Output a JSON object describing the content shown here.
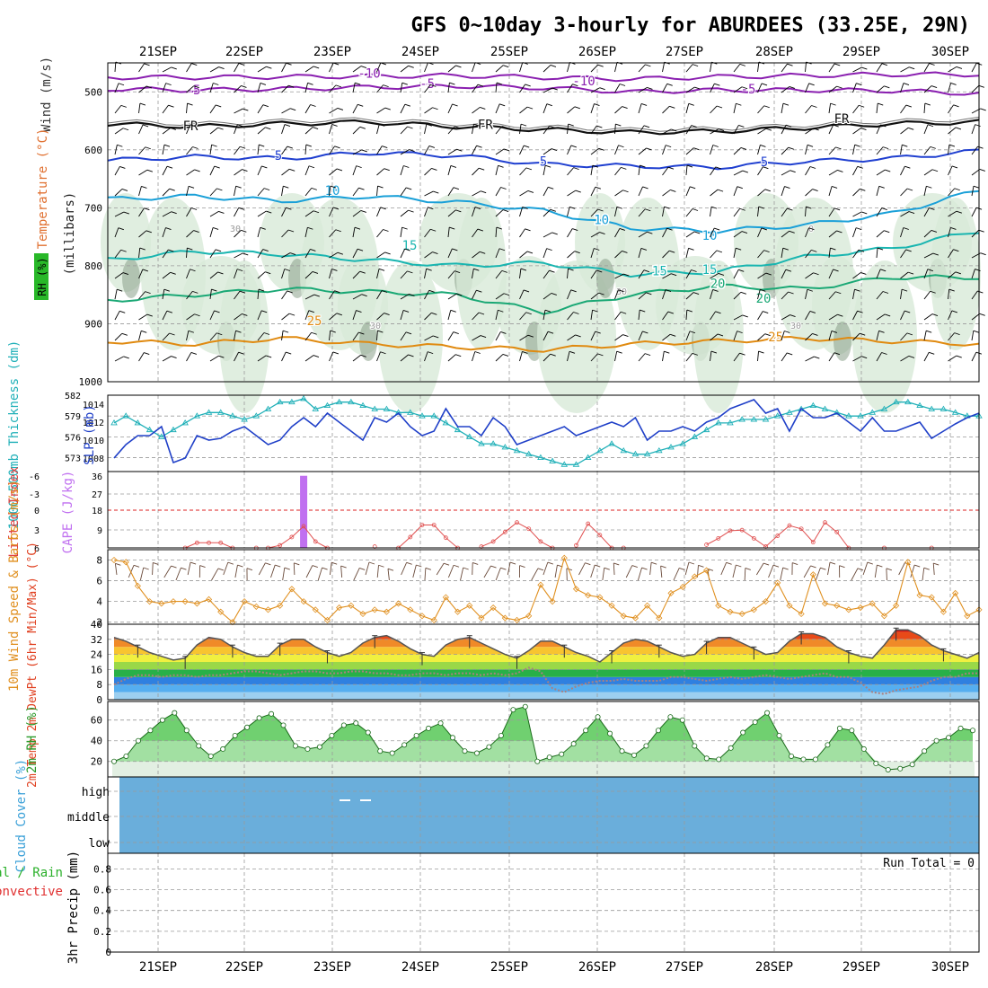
{
  "title": "GFS 0~10day 3-hourly for ABURDEES (33.25E, 29N)",
  "colors": {
    "grid": "#9a9a9a",
    "ref_red": "#dd2222",
    "purple": "#8a1fb0",
    "black": "#111111",
    "blue": "#1f3fd0",
    "cyan": "#1aa0d8",
    "teal": "#19b5b0",
    "green": "#1aa875",
    "orange": "#e08a10",
    "orange_dark": "#d05a10",
    "rh_fill": "#d8ead8",
    "rh_dark": "#8aa08a",
    "slp_line": "#2040c8",
    "thk_line": "#20b0b8",
    "cape_bar": "#c070f0",
    "li_line": "#e05050",
    "wind_line": "#e09020",
    "barb": "#6a4a3a",
    "cloud": "#6aaedb",
    "rh2m_fill": "#40c040"
  },
  "chart_data": [
    {
      "type": "line",
      "panel": "upper-air",
      "days": [
        "21SEP",
        "22SEP",
        "23SEP",
        "24SEP",
        "25SEP",
        "26SEP",
        "27SEP",
        "28SEP",
        "29SEP",
        "30SEP"
      ],
      "ylabel_parts": [
        "RH (%)",
        "Temperature (°C)",
        "Wind (m/s)",
        "(millibars)"
      ],
      "yticks": [
        500,
        600,
        700,
        800,
        900,
        1000
      ],
      "ylim": [
        450,
        1000
      ],
      "series": [
        {
          "name": "-10",
          "label": "-10",
          "color": "purple",
          "p": [
            475,
            475,
            474,
            473,
            472,
            475,
            478,
            474,
            472,
            470,
            470
          ]
        },
        {
          "name": "-5",
          "label": "-5",
          "color": "purple",
          "p": [
            495,
            497,
            495,
            492,
            490,
            493,
            500,
            497,
            497,
            498,
            503
          ]
        },
        {
          "name": "FR",
          "label": "FR",
          "color": "black",
          "p": [
            555,
            560,
            555,
            552,
            560,
            565,
            570,
            568,
            562,
            555,
            552
          ]
        },
        {
          "name": "5",
          "label": "5",
          "color": "blue",
          "p": [
            618,
            612,
            615,
            605,
            610,
            625,
            628,
            630,
            620,
            615,
            602
          ]
        },
        {
          "name": "10",
          "label": "10",
          "color": "cyan",
          "p": [
            685,
            680,
            688,
            680,
            690,
            705,
            735,
            740,
            730,
            710,
            670
          ]
        },
        {
          "name": "15",
          "label": "15",
          "color": "teal",
          "p": [
            790,
            775,
            780,
            790,
            800,
            795,
            815,
            810,
            785,
            770,
            740
          ]
        },
        {
          "name": "20",
          "label": "20",
          "color": "green",
          "p": [
            860,
            850,
            840,
            845,
            850,
            880,
            850,
            835,
            840,
            820,
            820
          ]
        },
        {
          "name": "25",
          "label": "25",
          "color": "orange",
          "p": [
            930,
            935,
            925,
            935,
            940,
            945,
            935,
            930,
            925,
            930,
            935
          ]
        }
      ],
      "contour_labels": [
        "-10",
        "-5",
        "-5",
        "FR",
        "FR",
        "5",
        "5",
        "10",
        "10",
        "15",
        "15",
        "20",
        "25",
        "30",
        "30",
        "30",
        "30",
        "0"
      ]
    },
    {
      "type": "line",
      "panel": "slp-thickness",
      "ylabel_left": "1000-500mb Thickness (dm)",
      "ylabel_right": "SLP (mb)",
      "thickness_ticks": [
        582,
        579,
        576,
        573
      ],
      "slp_ticks": [
        1014,
        1012,
        1010,
        1008
      ],
      "thickness_lim": [
        571,
        582
      ],
      "slp_lim": [
        1006.5,
        1015
      ],
      "series": [
        {
          "name": "SLP",
          "values": [
            1008,
            1009.5,
            1010.5,
            1010.5,
            1011.5,
            1007.5,
            1008,
            1010.5,
            1010,
            1010.2,
            1011,
            1011.5,
            1010.5,
            1009.5,
            1010,
            1011.5,
            1012.5,
            1011.5,
            1013,
            1012,
            1011,
            1010,
            1012.5,
            1012,
            1013,
            1011.5,
            1010.5,
            1011,
            1013.5,
            1011.5,
            1011.5,
            1010.5,
            1012.5,
            1011.5,
            1009.5,
            1010,
            1010.5,
            1011,
            1011.5,
            1010.5,
            1011,
            1011.5,
            1012,
            1011.5,
            1012.5,
            1010,
            1011,
            1011,
            1011.5,
            1011,
            1012,
            1012.5,
            1013.5,
            1014,
            1014.5,
            1013,
            1013.5,
            1011,
            1013.5,
            1012.5,
            1012.5,
            1013,
            1012,
            1011,
            1012.5,
            1011,
            1011,
            1011.5,
            1012,
            1010.2,
            1011,
            1011.8,
            1012.5,
            1013
          ]
        },
        {
          "name": "Thickness",
          "values": [
            578,
            579,
            578,
            577,
            576,
            577,
            578,
            579,
            579.5,
            579.5,
            579,
            578.5,
            579,
            580,
            581,
            581,
            581.5,
            580,
            580.5,
            581,
            581,
            580.5,
            580,
            580,
            579.5,
            579.5,
            579,
            579,
            578,
            577,
            576,
            575,
            575,
            574.5,
            574,
            573.5,
            573,
            572.5,
            572,
            572,
            573,
            574,
            575,
            574,
            573.5,
            573.5,
            574,
            574.5,
            575,
            576,
            577,
            578,
            578,
            578.5,
            578.5,
            578.5,
            579,
            579.5,
            580,
            580.5,
            580,
            579.5,
            579,
            579,
            579.5,
            580,
            581,
            581,
            580.5,
            580,
            580,
            579.5,
            579,
            579
          ]
        }
      ]
    },
    {
      "type": "bar",
      "panel": "cape-li",
      "ylabel_left": "Lifted Index",
      "ylabel_right": "CAPE (J/kg)",
      "li_ticks": [
        "-6",
        "-3",
        "0",
        "3",
        "6"
      ],
      "cape_ticks": [
        "36",
        "27",
        "18",
        "9",
        ""
      ],
      "cape_lim": [
        0,
        36
      ],
      "li_lim": [
        6,
        -6
      ],
      "cape_bars": [
        {
          "index": 16,
          "value": 34
        }
      ],
      "li_series": [
        {
          "name": "LI",
          "values": [
            null,
            null,
            null,
            null,
            null,
            null,
            6,
            5.2,
            5.2,
            5.2,
            6,
            null,
            6,
            6,
            5.6,
            4.3,
            2.6,
            5,
            6,
            null,
            null,
            null,
            5.8,
            null,
            6,
            4.3,
            2.4,
            2.4,
            4.4,
            6,
            null,
            5.8,
            5,
            3.5,
            2,
            3,
            5,
            6,
            null,
            5.6,
            2.2,
            4,
            6,
            6,
            null,
            null,
            null,
            null,
            null,
            null,
            5.5,
            4.5,
            3.3,
            3.2,
            4.5,
            5.8,
            4.1,
            2.5,
            3,
            5.1,
            2,
            3.5,
            6,
            null,
            null,
            6,
            null,
            null,
            null,
            6,
            null,
            null,
            null,
            null,
            null,
            null,
            6,
            6,
            6,
            6,
            6,
            5.9,
            5.8,
            5.1
          ]
        }
      ]
    },
    {
      "type": "line",
      "panel": "wind10m",
      "ylabel": "10m Wind Speed & Barbs (m/s)",
      "yticks": [
        "8",
        "6",
        "4",
        "2"
      ],
      "ylim": [
        1.8,
        9
      ],
      "series": [
        {
          "name": "Speed",
          "values": [
            8,
            7.8,
            5.5,
            4,
            3.8,
            4,
            4,
            3.8,
            4.2,
            3,
            2,
            4,
            3.5,
            3.2,
            3.6,
            5.2,
            4,
            3.2,
            2.2,
            3.4,
            3.6,
            2.8,
            3.2,
            3,
            3.8,
            3.2,
            2.6,
            2.2,
            4.4,
            3,
            3.6,
            2.4,
            3.4,
            2.4,
            2.2,
            2.6,
            5.6,
            4,
            8.2,
            5.2,
            4.6,
            4.4,
            3.6,
            2.6,
            2.4,
            3.6,
            2.4,
            4.8,
            5.4,
            6.4,
            7,
            3.6,
            3,
            2.8,
            3.2,
            4,
            5.8,
            3.6,
            2.8,
            6.6,
            3.8,
            3.6,
            3.2,
            3.4,
            3.8,
            2.6,
            3.6,
            7.8,
            4.6,
            4.4,
            3,
            4.8,
            2.6,
            3.2,
            4.2,
            5,
            6.8,
            4.8,
            3.8,
            5,
            3.4,
            4.6,
            5,
            7,
            6.4,
            5,
            3.2,
            2.6,
            3.6,
            4.4,
            5.2,
            6,
            5.2,
            4.2,
            4
          ]
        }
      ]
    },
    {
      "type": "area",
      "panel": "temp2m",
      "ylabel": "2m Temp 2m DewPt (6hr Min/Max) (°C)",
      "yticks": [
        "40",
        "32",
        "24",
        "16",
        "8",
        "0"
      ],
      "ylim": [
        0,
        40
      ],
      "series": [
        {
          "name": "Temp",
          "values": [
            33,
            31,
            28,
            25,
            23,
            21,
            22,
            29,
            33,
            32,
            28,
            25,
            23,
            23,
            29,
            32,
            32,
            28,
            25,
            23,
            25,
            30,
            33,
            34,
            31,
            27,
            24,
            23,
            29,
            32,
            33,
            30,
            27,
            24,
            22,
            26,
            31,
            31,
            28,
            25,
            23,
            20,
            25,
            30,
            32,
            31,
            28,
            25,
            23,
            24,
            30,
            33,
            33,
            30,
            27,
            24,
            25,
            31,
            35,
            35,
            33,
            28,
            25,
            23,
            22,
            29,
            37,
            37,
            34,
            29,
            26,
            24,
            22,
            25
          ]
        },
        {
          "name": "DewPt",
          "values": [
            8,
            11,
            13,
            13,
            12,
            13,
            13,
            12,
            13,
            13,
            14,
            15,
            15,
            14,
            13,
            14,
            15,
            15,
            14,
            14,
            15,
            15,
            14,
            14,
            13,
            13,
            14,
            14,
            13,
            14,
            14,
            13,
            14,
            13,
            14,
            17,
            15,
            6,
            4,
            7,
            9,
            10,
            10,
            11,
            10,
            10,
            10,
            12,
            12,
            11,
            10,
            11,
            12,
            11,
            12,
            13,
            12,
            11,
            12,
            13,
            14,
            12,
            12,
            9,
            4,
            3,
            5,
            6,
            7,
            10,
            12,
            12,
            14,
            14
          ]
        }
      ]
    },
    {
      "type": "area",
      "panel": "rh2m",
      "ylabel": "2m RH (%)",
      "yticks": [
        "60",
        "40",
        "20"
      ],
      "ylim": [
        5,
        78
      ],
      "series": [
        {
          "name": "RH",
          "values": [
            20,
            25,
            40,
            50,
            60,
            67,
            50,
            35,
            25,
            32,
            45,
            53,
            62,
            66,
            55,
            35,
            32,
            34,
            45,
            55,
            57,
            48,
            30,
            28,
            36,
            45,
            52,
            57,
            43,
            30,
            28,
            34,
            45,
            70,
            73,
            20,
            24,
            27,
            37,
            50,
            63,
            47,
            30,
            26,
            35,
            50,
            63,
            60,
            35,
            23,
            22,
            33,
            48,
            58,
            67,
            45,
            25,
            22,
            22,
            36,
            52,
            50,
            32,
            18,
            12,
            13,
            17,
            30,
            40,
            43,
            52,
            50
          ]
        }
      ]
    },
    {
      "type": "heatmap",
      "panel": "cloud",
      "ylabel": "Cloud Cover (%)",
      "levels": [
        "high",
        "middle",
        "low"
      ]
    },
    {
      "type": "bar",
      "panel": "precip",
      "ylabel_total": "Total / Rain",
      "ylabel_conv": "Convective",
      "ylabel": "3hr Precip (mm)",
      "yticks": [
        "0.8",
        "0.6",
        "0.4",
        "0.2",
        "0"
      ],
      "ylim": [
        0,
        0.95
      ],
      "run_total": "Run Total = 0",
      "values": []
    }
  ]
}
